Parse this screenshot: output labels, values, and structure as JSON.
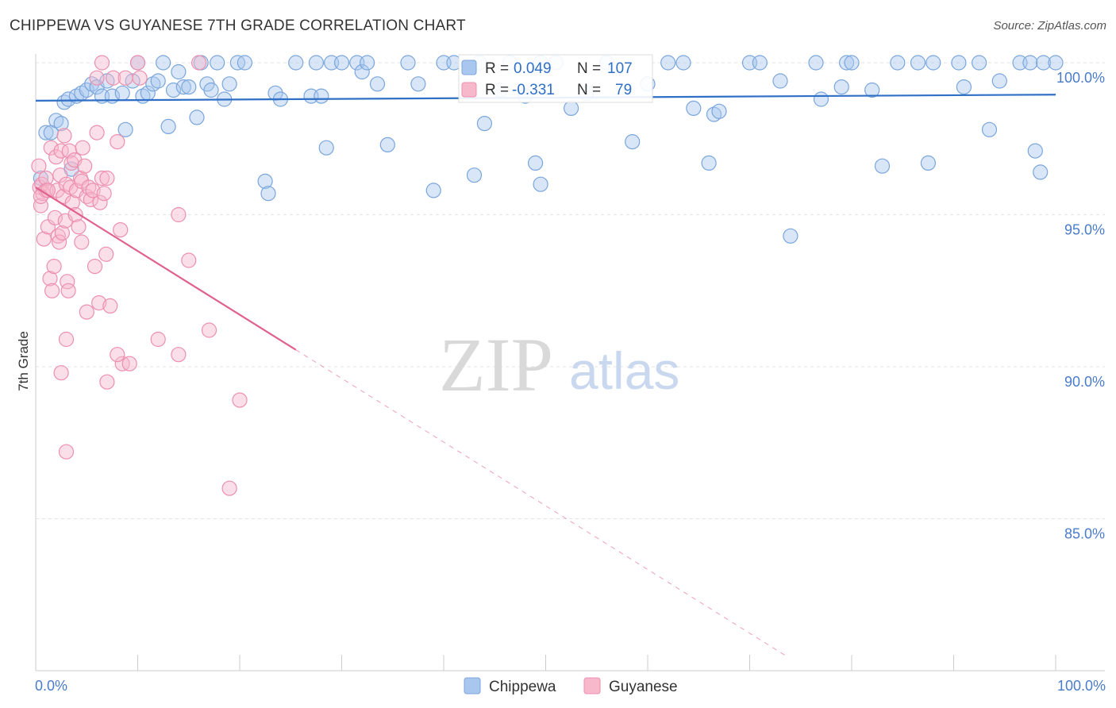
{
  "title": "CHIPPEWA VS GUYANESE 7TH GRADE CORRELATION CHART",
  "source": "Source: ZipAtlas.com",
  "watermark": {
    "part1": "ZIP",
    "part2": "atlas"
  },
  "stats_legend": {
    "series1": {
      "r_label": "R =",
      "r_value": "0.049",
      "n_label": "N =",
      "n_value": "107"
    },
    "series2": {
      "r_label": "R =",
      "r_value": "-0.331",
      "n_label": "N =",
      "n_value": "79"
    }
  },
  "colors": {
    "chippewa_fill": "#a9c7ee",
    "chippewa_stroke": "#7aa6dc",
    "chippewa_line": "#2f6fc6",
    "guyanese_fill": "#f7b8cc",
    "guyanese_stroke": "#ec8fae",
    "guyanese_line": "#e0608e",
    "value_text": "#2f6fc6",
    "grid": "#e3e3e3"
  },
  "chart_data": {
    "type": "scatter",
    "title": "CHIPPEWA VS GUYANESE 7TH GRADE CORRELATION CHART",
    "xlabel": "",
    "ylabel": "7th Grade",
    "xlim": [
      0,
      100
    ],
    "ylim": [
      80.5,
      100.5
    ],
    "x_tick_labels": [
      {
        "value": 0,
        "label": "0.0%"
      },
      {
        "value": 100,
        "label": "100.0%"
      }
    ],
    "y_tick_labels": [
      {
        "value": 100,
        "label": "100.0%"
      },
      {
        "value": 95,
        "label": "95.0%"
      },
      {
        "value": 90,
        "label": "90.0%"
      },
      {
        "value": 85,
        "label": "85.0%"
      }
    ],
    "grid": true,
    "legend": "bottom-center",
    "series": [
      {
        "name": "Chippewa",
        "r": 0.049,
        "n": 107,
        "trend": {
          "x": [
            0,
            100
          ],
          "y": [
            98.75,
            98.95
          ],
          "solid_to": 100
        },
        "points": [
          [
            0.5,
            96.2
          ],
          [
            1.0,
            97.7
          ],
          [
            1.5,
            97.7
          ],
          [
            2.0,
            98.1
          ],
          [
            2.5,
            98.0
          ],
          [
            2.8,
            98.7
          ],
          [
            3.2,
            98.8
          ],
          [
            3.5,
            96.5
          ],
          [
            4.0,
            98.9
          ],
          [
            4.5,
            99.0
          ],
          [
            5.0,
            99.1
          ],
          [
            5.5,
            99.3
          ],
          [
            6.0,
            99.2
          ],
          [
            6.5,
            98.9
          ],
          [
            7.0,
            99.4
          ],
          [
            7.5,
            98.9
          ],
          [
            8.5,
            99.0
          ],
          [
            8.8,
            97.8
          ],
          [
            9.5,
            99.4
          ],
          [
            10.0,
            100.0
          ],
          [
            10.5,
            98.9
          ],
          [
            11.0,
            99.0
          ],
          [
            11.5,
            99.3
          ],
          [
            12.0,
            99.4
          ],
          [
            12.5,
            100.0
          ],
          [
            13.0,
            97.9
          ],
          [
            13.5,
            99.1
          ],
          [
            14.0,
            99.7
          ],
          [
            14.5,
            99.2
          ],
          [
            15.0,
            99.2
          ],
          [
            15.8,
            98.2
          ],
          [
            16.2,
            100.0
          ],
          [
            16.8,
            99.3
          ],
          [
            17.2,
            99.1
          ],
          [
            17.8,
            100.0
          ],
          [
            18.5,
            98.8
          ],
          [
            19.0,
            99.3
          ],
          [
            19.8,
            100.0
          ],
          [
            20.5,
            100.0
          ],
          [
            22.5,
            96.1
          ],
          [
            22.8,
            95.7
          ],
          [
            23.5,
            99.0
          ],
          [
            24.0,
            98.8
          ],
          [
            25.5,
            100.0
          ],
          [
            27.0,
            98.9
          ],
          [
            27.5,
            100.0
          ],
          [
            28.0,
            98.9
          ],
          [
            28.5,
            97.2
          ],
          [
            29.0,
            100.0
          ],
          [
            30.0,
            100.0
          ],
          [
            31.5,
            100.0
          ],
          [
            32.0,
            99.7
          ],
          [
            32.5,
            100.0
          ],
          [
            33.5,
            99.3
          ],
          [
            34.5,
            97.3
          ],
          [
            36.5,
            100.0
          ],
          [
            37.5,
            99.3
          ],
          [
            39.0,
            95.8
          ],
          [
            40.0,
            100.0
          ],
          [
            41.0,
            100.0
          ],
          [
            43.0,
            96.3
          ],
          [
            43.5,
            100.0
          ],
          [
            44.0,
            98.0
          ],
          [
            45.5,
            99.1
          ],
          [
            46.5,
            100.0
          ],
          [
            49.0,
            96.7
          ],
          [
            49.5,
            96.0
          ],
          [
            51.0,
            100.0
          ],
          [
            52.5,
            98.5
          ],
          [
            54.0,
            99.0
          ],
          [
            56.0,
            100.0
          ],
          [
            58.5,
            97.4
          ],
          [
            60.0,
            99.3
          ],
          [
            62.0,
            100.0
          ],
          [
            63.5,
            100.0
          ],
          [
            64.5,
            98.5
          ],
          [
            66.0,
            96.7
          ],
          [
            66.5,
            98.3
          ],
          [
            67.0,
            98.4
          ],
          [
            70.0,
            100.0
          ],
          [
            71.0,
            100.0
          ],
          [
            73.0,
            99.4
          ],
          [
            74.0,
            94.3
          ],
          [
            76.5,
            100.0
          ],
          [
            77.0,
            98.8
          ],
          [
            79.0,
            99.2
          ],
          [
            79.5,
            100.0
          ],
          [
            80.0,
            100.0
          ],
          [
            82.0,
            99.1
          ],
          [
            83.0,
            96.6
          ],
          [
            84.5,
            100.0
          ],
          [
            86.5,
            100.0
          ],
          [
            87.5,
            96.7
          ],
          [
            88.0,
            100.0
          ],
          [
            90.5,
            100.0
          ],
          [
            91.0,
            99.2
          ],
          [
            92.5,
            100.0
          ],
          [
            93.5,
            97.8
          ],
          [
            94.5,
            99.4
          ],
          [
            96.5,
            100.0
          ],
          [
            97.5,
            100.0
          ],
          [
            98.0,
            97.1
          ],
          [
            98.5,
            96.4
          ],
          [
            98.8,
            100.0
          ],
          [
            100.0,
            100.0
          ],
          [
            49.5,
            100.0
          ],
          [
            48.0,
            98.9
          ]
        ]
      },
      {
        "name": "Guyanese",
        "r": -0.331,
        "n": 79,
        "trend": {
          "x": [
            0,
            73.5
          ],
          "y": [
            95.9,
            80.5
          ],
          "solid_to": 25.5
        },
        "points": [
          [
            0.3,
            96.6
          ],
          [
            0.4,
            95.9
          ],
          [
            0.5,
            95.3
          ],
          [
            0.6,
            96.0
          ],
          [
            0.7,
            95.7
          ],
          [
            0.8,
            94.2
          ],
          [
            1.0,
            95.8
          ],
          [
            1.2,
            94.6
          ],
          [
            1.4,
            92.9
          ],
          [
            1.5,
            97.2
          ],
          [
            1.6,
            92.5
          ],
          [
            1.8,
            93.3
          ],
          [
            1.9,
            94.9
          ],
          [
            2.0,
            96.9
          ],
          [
            2.1,
            95.8
          ],
          [
            2.2,
            94.3
          ],
          [
            2.3,
            94.1
          ],
          [
            2.4,
            96.3
          ],
          [
            2.5,
            97.1
          ],
          [
            2.6,
            94.4
          ],
          [
            2.7,
            95.6
          ],
          [
            2.8,
            97.6
          ],
          [
            2.9,
            94.8
          ],
          [
            3.0,
            96.0
          ],
          [
            3.1,
            92.8
          ],
          [
            3.2,
            92.5
          ],
          [
            3.3,
            97.1
          ],
          [
            3.4,
            95.9
          ],
          [
            3.5,
            96.7
          ],
          [
            3.6,
            95.4
          ],
          [
            3.8,
            96.8
          ],
          [
            3.9,
            95.0
          ],
          [
            4.0,
            95.8
          ],
          [
            4.2,
            94.6
          ],
          [
            4.4,
            96.2
          ],
          [
            4.5,
            96.1
          ],
          [
            4.6,
            97.2
          ],
          [
            4.8,
            96.6
          ],
          [
            5.0,
            95.6
          ],
          [
            5.2,
            95.9
          ],
          [
            5.4,
            95.5
          ],
          [
            5.6,
            95.8
          ],
          [
            5.8,
            93.3
          ],
          [
            6.0,
            97.7
          ],
          [
            6.2,
            92.1
          ],
          [
            6.3,
            95.4
          ],
          [
            6.5,
            96.2
          ],
          [
            6.7,
            95.7
          ],
          [
            6.9,
            93.7
          ],
          [
            7.0,
            96.2
          ],
          [
            7.3,
            92.0
          ],
          [
            7.6,
            99.5
          ],
          [
            8.0,
            97.4
          ],
          [
            8.3,
            94.5
          ],
          [
            8.5,
            90.1
          ],
          [
            8.8,
            99.5
          ],
          [
            9.2,
            90.1
          ],
          [
            10.0,
            100.0
          ],
          [
            10.2,
            99.5
          ],
          [
            6.0,
            99.5
          ],
          [
            6.5,
            100.0
          ],
          [
            4.5,
            94.1
          ],
          [
            5.0,
            91.8
          ],
          [
            2.5,
            89.8
          ],
          [
            3.0,
            87.2
          ],
          [
            7.0,
            89.5
          ],
          [
            8.0,
            90.4
          ],
          [
            12.0,
            90.9
          ],
          [
            14.0,
            95.0
          ],
          [
            14.0,
            90.4
          ],
          [
            15.0,
            93.5
          ],
          [
            17.0,
            91.2
          ],
          [
            19.0,
            86.0
          ],
          [
            20.0,
            88.9
          ],
          [
            16.0,
            100.0
          ],
          [
            3.0,
            90.9
          ],
          [
            1.0,
            96.2
          ],
          [
            0.5,
            95.6
          ],
          [
            1.2,
            95.8
          ]
        ]
      }
    ]
  }
}
